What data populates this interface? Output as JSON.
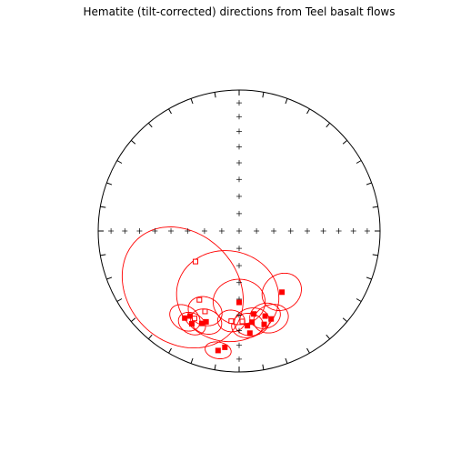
{
  "chart_data": {
    "type": "scatter",
    "subtype": "equal-area stereonet",
    "title": "Hematite (tilt-corrected) directions from Teel basalt flows",
    "xlabel": "",
    "ylabel": "",
    "grid": false,
    "colors": {
      "data": "#ff0000",
      "frame": "#000000",
      "fill": "#ffffff"
    },
    "series": [
      {
        "direction_marker": "square",
        "points": [
          {
            "dec": 180.0,
            "inc": 48.0,
            "filled": true
          },
          {
            "dec": 175.0,
            "inc": 33.0,
            "filled": true
          },
          {
            "dec": 174.0,
            "inc": 28.0,
            "filled": true
          },
          {
            "dec": 172.0,
            "inc": 35.0,
            "filled": true
          },
          {
            "dec": 163.0,
            "inc": 37.0,
            "filled": true
          },
          {
            "dec": 165.0,
            "inc": 32.0,
            "filled": true
          },
          {
            "dec": 160.0,
            "inc": 34.0,
            "filled": true
          },
          {
            "dec": 145.0,
            "inc": 46.0,
            "filled": true
          },
          {
            "dec": 170.0,
            "inc": 40.0,
            "filled": true
          },
          {
            "dec": 190.0,
            "inc": 15.0,
            "filled": true
          },
          {
            "dec": 187.0,
            "inc": 18.0,
            "filled": true
          },
          {
            "dec": 200.0,
            "inc": 32.0,
            "filled": true
          },
          {
            "dec": 207.0,
            "inc": 27.0,
            "filled": true
          },
          {
            "dec": 202.0,
            "inc": 30.0,
            "filled": true
          },
          {
            "dec": 210.0,
            "inc": 31.0,
            "filled": true
          },
          {
            "dec": 212.0,
            "inc": 28.0,
            "filled": true
          },
          {
            "dec": 178.0,
            "inc": 36.0,
            "filled": false
          },
          {
            "dec": 185.0,
            "inc": 36.0,
            "filled": false
          },
          {
            "dec": 207.0,
            "inc": 31.0,
            "filled": false
          },
          {
            "dec": 203.0,
            "inc": 38.0,
            "filled": false
          },
          {
            "dec": 210.0,
            "inc": 43.0,
            "filled": false
          },
          {
            "dec": 235.0,
            "inc": 59.0,
            "filled": false
          }
        ],
        "confidence_ellipses": [
          {
            "dec": 180.0,
            "inc": 48.0,
            "a95": 14.0
          },
          {
            "dec": 175.0,
            "inc": 33.0,
            "a95": 8.0
          },
          {
            "dec": 172.0,
            "inc": 35.0,
            "a95": 9.0
          },
          {
            "dec": 163.0,
            "inc": 37.0,
            "a95": 8.0
          },
          {
            "dec": 160.0,
            "inc": 34.0,
            "a95": 9.0
          },
          {
            "dec": 145.0,
            "inc": 46.0,
            "a95": 11.0
          },
          {
            "dec": 190.0,
            "inc": 15.0,
            "a95": 6.0
          },
          {
            "dec": 200.0,
            "inc": 32.0,
            "a95": 8.0
          },
          {
            "dec": 207.0,
            "inc": 27.0,
            "a95": 7.0
          },
          {
            "dec": 212.0,
            "inc": 28.0,
            "a95": 8.0
          },
          {
            "dec": 185.0,
            "inc": 36.0,
            "a95": 7.0
          },
          {
            "dec": 203.0,
            "inc": 38.0,
            "a95": 9.0
          },
          {
            "dec": 190.0,
            "inc": 50.0,
            "a95": 28.0
          },
          {
            "dec": 225.0,
            "inc": 40.0,
            "a95": 35.0
          }
        ]
      }
    ]
  }
}
